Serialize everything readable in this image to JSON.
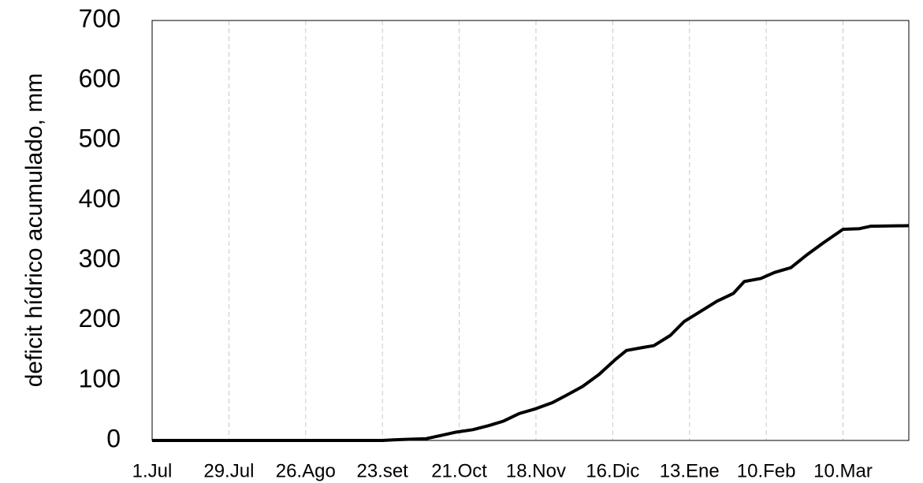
{
  "chart_data": {
    "type": "line",
    "ylabel": "deficit hídrico acumulado, mm",
    "x": [
      0,
      84,
      88,
      100,
      105,
      111,
      117,
      123,
      128,
      134,
      140,
      146,
      151,
      157,
      163,
      169,
      173,
      179,
      183,
      189,
      194,
      200,
      206,
      212,
      216,
      222,
      227,
      233,
      239,
      245,
      252,
      258,
      262,
      276
    ],
    "values": [
      0,
      0,
      1,
      3,
      8,
      14,
      18,
      25,
      32,
      45,
      53,
      63,
      75,
      90,
      110,
      135,
      150,
      155,
      158,
      175,
      198,
      215,
      232,
      245,
      265,
      270,
      280,
      288,
      310,
      330,
      352,
      353,
      357,
      358
    ],
    "color": "#000000",
    "xlim": [
      0,
      276
    ],
    "xticks": [
      {
        "value": 0,
        "label": "1.Jul"
      },
      {
        "value": 28,
        "label": "29.Jul"
      },
      {
        "value": 56,
        "label": "26.Ago"
      },
      {
        "value": 84,
        "label": "23.set"
      },
      {
        "value": 112,
        "label": "21.Oct"
      },
      {
        "value": 140,
        "label": "18.Nov"
      },
      {
        "value": 168,
        "label": "16.Dic"
      },
      {
        "value": 196,
        "label": "13.Ene"
      },
      {
        "value": 224,
        "label": "10.Feb"
      },
      {
        "value": 252,
        "label": "10.Mar"
      }
    ],
    "ylim": [
      0,
      700
    ],
    "yticks": [
      0,
      100,
      200,
      300,
      400,
      500,
      600,
      700
    ],
    "grid": true
  }
}
